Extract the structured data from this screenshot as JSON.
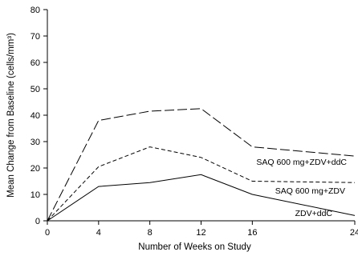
{
  "chart_data": {
    "type": "line",
    "title": "",
    "xlabel": "Number of Weeks on Study",
    "ylabel": "Mean Change from Baseline (cells/mm³)",
    "xlim": [
      0,
      24
    ],
    "ylim": [
      0,
      80
    ],
    "xticks": [
      0,
      4,
      8,
      12,
      16,
      24
    ],
    "yticks": [
      0,
      10,
      20,
      30,
      40,
      50,
      60,
      70,
      80
    ],
    "xtick_labels": [
      "0",
      "4",
      "8",
      "12",
      "16",
      "24"
    ],
    "ytick_labels": [
      "0",
      "10",
      "20",
      "30",
      "40",
      "50",
      "60",
      "70",
      "80"
    ],
    "grid": false,
    "legend": "direct labels at right end of lines",
    "x": [
      0,
      4,
      8,
      12,
      16,
      24
    ],
    "series": [
      {
        "name": "SAQ 600 mg+ZDV+ddC",
        "values": [
          0,
          38,
          41.5,
          42.5,
          28,
          24.5
        ],
        "dash": "long-dash",
        "color": "#000000"
      },
      {
        "name": "SAQ 600 mg+ZDV",
        "values": [
          0,
          20.5,
          28,
          24,
          15,
          14.5
        ],
        "dash": "short-dash",
        "color": "#000000"
      },
      {
        "name": "ZDV+ddC",
        "values": [
          0,
          13,
          14.5,
          17.5,
          10,
          2
        ],
        "dash": "solid",
        "color": "#000000"
      }
    ]
  }
}
